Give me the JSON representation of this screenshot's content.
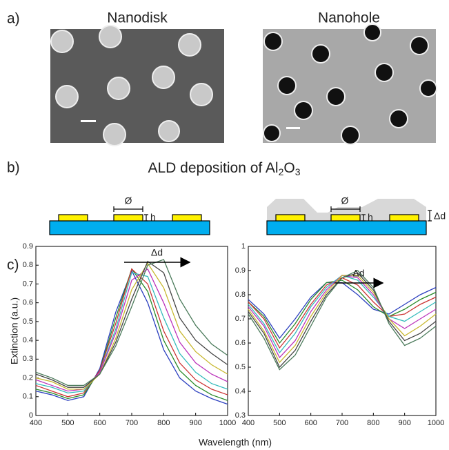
{
  "panels": {
    "a": "a)",
    "b": "b)",
    "c": "c)"
  },
  "images": {
    "left": "Nanodisk",
    "right": "Nanohole"
  },
  "schematic": {
    "title": [
      "ALD deposition of Al",
      "2",
      "O",
      "3"
    ],
    "left": {
      "diameter": "Ø",
      "height": "h"
    },
    "right": {
      "diameter": "Ø",
      "height": "h",
      "thickness": "Δd"
    }
  },
  "chart_data": [
    {
      "type": "line",
      "ylabel": "Extinction (a.u.)",
      "xlabel": "Wavelength (nm)",
      "annotation": "Δd",
      "x": [
        400,
        450,
        500,
        550,
        600,
        650,
        700,
        750,
        800,
        850,
        900,
        950,
        1000
      ],
      "xlim": [
        400,
        1000
      ],
      "xticks": [
        400,
        500,
        600,
        700,
        800,
        900,
        1000
      ],
      "ylim": [
        0,
        0.9
      ],
      "yticks": [
        0,
        0.1,
        0.2,
        0.3,
        0.4,
        0.5,
        0.6,
        0.7,
        0.8,
        0.9
      ],
      "series": [
        {
          "color": "#2b3fbf",
          "values": [
            0.13,
            0.11,
            0.08,
            0.1,
            0.25,
            0.55,
            0.77,
            0.6,
            0.35,
            0.2,
            0.13,
            0.09,
            0.06
          ]
        },
        {
          "color": "#2a8a2a",
          "values": [
            0.14,
            0.12,
            0.09,
            0.11,
            0.24,
            0.52,
            0.78,
            0.66,
            0.4,
            0.24,
            0.16,
            0.11,
            0.08
          ]
        },
        {
          "color": "#cc3333",
          "values": [
            0.16,
            0.13,
            0.1,
            0.12,
            0.24,
            0.49,
            0.78,
            0.7,
            0.45,
            0.28,
            0.19,
            0.14,
            0.11
          ]
        },
        {
          "color": "#33bbbb",
          "values": [
            0.17,
            0.15,
            0.12,
            0.13,
            0.23,
            0.46,
            0.76,
            0.74,
            0.52,
            0.33,
            0.23,
            0.17,
            0.14
          ]
        },
        {
          "color": "#bb33bb",
          "values": [
            0.19,
            0.16,
            0.13,
            0.14,
            0.23,
            0.44,
            0.72,
            0.78,
            0.6,
            0.39,
            0.28,
            0.22,
            0.18
          ]
        },
        {
          "color": "#c8b830",
          "values": [
            0.2,
            0.18,
            0.14,
            0.14,
            0.22,
            0.41,
            0.67,
            0.81,
            0.68,
            0.45,
            0.34,
            0.27,
            0.22
          ]
        },
        {
          "color": "#444444",
          "values": [
            0.22,
            0.19,
            0.15,
            0.15,
            0.22,
            0.39,
            0.62,
            0.82,
            0.76,
            0.52,
            0.4,
            0.33,
            0.27
          ]
        },
        {
          "color": "#4a7a5a",
          "values": [
            0.23,
            0.2,
            0.16,
            0.16,
            0.22,
            0.37,
            0.58,
            0.8,
            0.83,
            0.62,
            0.48,
            0.38,
            0.32
          ]
        }
      ]
    },
    {
      "type": "line",
      "annotation": "Δd",
      "x": [
        400,
        450,
        500,
        550,
        600,
        650,
        700,
        750,
        800,
        850,
        900,
        950,
        1000
      ],
      "xlim": [
        400,
        1000
      ],
      "xticks": [
        400,
        500,
        600,
        700,
        800,
        900,
        1000
      ],
      "ylim": [
        0.3,
        1
      ],
      "yticks": [
        0.3,
        0.4,
        0.5,
        0.6,
        0.7,
        0.8,
        0.9,
        1
      ],
      "series": [
        {
          "color": "#2b3fbf",
          "values": [
            0.78,
            0.72,
            0.62,
            0.7,
            0.79,
            0.85,
            0.85,
            0.8,
            0.74,
            0.72,
            0.76,
            0.8,
            0.83
          ]
        },
        {
          "color": "#2a8a2a",
          "values": [
            0.77,
            0.71,
            0.6,
            0.68,
            0.78,
            0.85,
            0.86,
            0.82,
            0.75,
            0.71,
            0.74,
            0.78,
            0.81
          ]
        },
        {
          "color": "#cc3333",
          "values": [
            0.77,
            0.7,
            0.58,
            0.66,
            0.76,
            0.84,
            0.87,
            0.84,
            0.77,
            0.71,
            0.72,
            0.76,
            0.79
          ]
        },
        {
          "color": "#33bbbb",
          "values": [
            0.76,
            0.68,
            0.56,
            0.64,
            0.75,
            0.83,
            0.88,
            0.86,
            0.79,
            0.71,
            0.69,
            0.73,
            0.77
          ]
        },
        {
          "color": "#bb33bb",
          "values": [
            0.75,
            0.67,
            0.54,
            0.61,
            0.73,
            0.82,
            0.88,
            0.87,
            0.8,
            0.7,
            0.66,
            0.7,
            0.74
          ]
        },
        {
          "color": "#c8b830",
          "values": [
            0.74,
            0.65,
            0.52,
            0.59,
            0.71,
            0.81,
            0.88,
            0.88,
            0.81,
            0.7,
            0.63,
            0.67,
            0.72
          ]
        },
        {
          "color": "#444444",
          "values": [
            0.73,
            0.64,
            0.5,
            0.57,
            0.69,
            0.8,
            0.87,
            0.89,
            0.82,
            0.69,
            0.61,
            0.64,
            0.69
          ]
        },
        {
          "color": "#4a7a5a",
          "values": [
            0.72,
            0.62,
            0.49,
            0.55,
            0.67,
            0.79,
            0.87,
            0.9,
            0.83,
            0.68,
            0.59,
            0.62,
            0.67
          ]
        }
      ]
    }
  ]
}
